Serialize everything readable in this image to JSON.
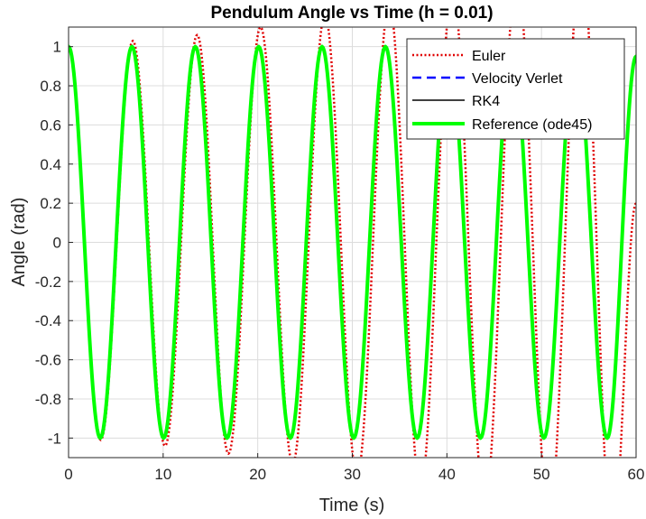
{
  "chart_data": {
    "type": "line",
    "title": "Pendulum Angle vs Time (h = 0.01)",
    "xlabel": "Time (s)",
    "ylabel": "Angle (rad)",
    "xlim": [
      0,
      60
    ],
    "ylim": [
      -1.1,
      1.1
    ],
    "xticks": [
      "0",
      "10",
      "20",
      "30",
      "40",
      "50",
      "60"
    ],
    "yticks": [
      "-1",
      "-0.8",
      "-0.6",
      "-0.4",
      "-0.2",
      "0",
      "0.2",
      "0.4",
      "0.6",
      "0.8",
      "1"
    ],
    "grid": true,
    "legend_position": "top-right",
    "series": [
      {
        "name": "Euler",
        "style": "dotted",
        "color": "#e00000",
        "x": [
          0,
          3.4,
          6.8,
          10.2,
          13.6,
          16.9,
          20.3,
          23.7,
          27.1,
          30.5,
          33.9,
          37.2,
          40.6,
          44.0,
          47.4,
          50.8,
          54.2,
          57.5,
          60
        ],
        "y": [
          1.0,
          -1.01,
          1.03,
          -1.04,
          1.06,
          -1.08,
          1.1,
          -1.13,
          1.16,
          -1.19,
          1.22,
          -1.26,
          1.3,
          -1.34,
          1.38,
          -1.43,
          1.48,
          -1.53,
          0.2
        ]
      },
      {
        "name": "Velocity Verlet",
        "style": "dashed",
        "color": "#0000ff",
        "x": [
          0,
          3.35,
          6.7,
          10.05,
          13.4,
          16.75,
          20.1,
          23.45,
          26.8,
          30.15,
          33.5,
          36.85,
          40.2,
          43.55,
          46.9,
          50.25,
          53.6,
          56.95,
          60
        ],
        "y": [
          1.0,
          -1.0,
          1.0,
          -1.0,
          1.0,
          -1.0,
          1.0,
          -1.0,
          1.0,
          -1.0,
          1.0,
          -1.0,
          1.0,
          -1.0,
          1.0,
          -1.0,
          1.0,
          -1.0,
          0.95
        ]
      },
      {
        "name": "RK4",
        "style": "solid",
        "color": "#000000",
        "x": [
          0,
          3.35,
          6.7,
          10.05,
          13.4,
          16.75,
          20.1,
          23.45,
          26.8,
          30.15,
          33.5,
          36.85,
          40.2,
          43.55,
          46.9,
          50.25,
          53.6,
          56.95,
          60
        ],
        "y": [
          1.0,
          -1.0,
          1.0,
          -1.0,
          1.0,
          -1.0,
          1.0,
          -1.0,
          1.0,
          -1.0,
          1.0,
          -1.0,
          1.0,
          -1.0,
          1.0,
          -1.0,
          1.0,
          -1.0,
          0.95
        ]
      },
      {
        "name": "Reference (ode45)",
        "style": "thick",
        "color": "#00ff00",
        "x": [
          0,
          3.35,
          6.7,
          10.05,
          13.4,
          16.75,
          20.1,
          23.45,
          26.8,
          30.15,
          33.5,
          36.85,
          40.2,
          43.55,
          46.9,
          50.25,
          53.6,
          56.95,
          60
        ],
        "y": [
          1.0,
          -1.0,
          1.0,
          -1.0,
          1.0,
          -1.0,
          1.0,
          -1.0,
          1.0,
          -1.0,
          1.0,
          -1.0,
          1.0,
          -1.0,
          1.0,
          -1.0,
          1.0,
          -1.0,
          0.95
        ]
      }
    ]
  }
}
